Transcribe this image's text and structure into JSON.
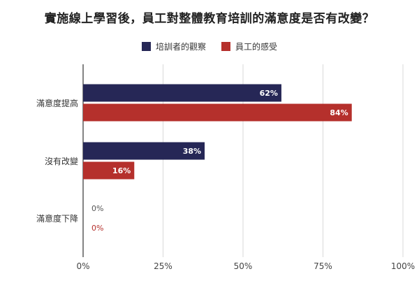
{
  "chart_data": {
    "type": "bar",
    "orientation": "horizontal",
    "title": "實施線上學習後，員工對整體教育培訓的滿意度是否有改變？",
    "categories": [
      "滿意度提高",
      "沒有改變",
      "滿意度下降"
    ],
    "series": [
      {
        "name": "培訓者的觀察",
        "color": "#262756",
        "values": [
          62,
          38,
          0
        ],
        "labels": [
          "62%",
          "38%",
          "0%"
        ]
      },
      {
        "name": "員工的感受",
        "color": "#b5302c",
        "values": [
          84,
          16,
          0
        ],
        "labels": [
          "84%",
          "16%",
          "0%"
        ]
      }
    ],
    "xlim": [
      0,
      100
    ],
    "xticks": [
      "0%",
      "25%",
      "50%",
      "75%",
      "100%"
    ],
    "xtick_values": [
      0,
      25,
      50,
      75,
      100
    ],
    "grid": true,
    "legend_position": "top"
  }
}
